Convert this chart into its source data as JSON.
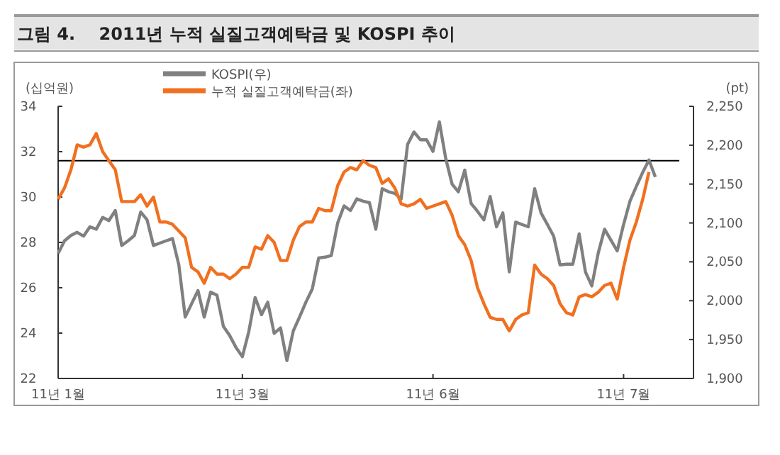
{
  "chart_data": {
    "type": "line",
    "title": "그림 4.    2011년 누적 실질고객예탁금 및 KOSPI 추이",
    "ylabel": "(십억원)",
    "y2label": "(pt)",
    "categories": [
      "11년 1월",
      null,
      null,
      null,
      null,
      null,
      null,
      null,
      null,
      null,
      null,
      null,
      null,
      null,
      null,
      null,
      null,
      null,
      null,
      null,
      null,
      null,
      null,
      null,
      null,
      null,
      null,
      null,
      null,
      "11년 3월",
      null,
      null,
      null,
      null,
      null,
      null,
      null,
      null,
      null,
      null,
      null,
      null,
      null,
      null,
      null,
      null,
      null,
      null,
      null,
      null,
      null,
      null,
      null,
      null,
      null,
      null,
      null,
      null,
      null,
      "11년 6월",
      null,
      null,
      null,
      null,
      null,
      null,
      null,
      null,
      null,
      null,
      null,
      null,
      null,
      null,
      null,
      null,
      null,
      null,
      null,
      null,
      null,
      null,
      null,
      null,
      null,
      null,
      null,
      null,
      null,
      "11년 7월",
      null,
      null,
      null,
      null,
      null,
      null,
      null,
      null,
      null,
      null
    ],
    "ylim": [
      22,
      34
    ],
    "yticks": [
      22,
      24,
      26,
      28,
      30,
      32,
      34
    ],
    "y2lim": [
      1900,
      2250
    ],
    "y2ticks": [
      {
        "value": 1900,
        "label": "1,900"
      },
      {
        "value": 1950,
        "label": "1,950"
      },
      {
        "value": 2000,
        "label": "2,000"
      },
      {
        "value": 2050,
        "label": "2,050"
      },
      {
        "value": 2100,
        "label": "2,100"
      },
      {
        "value": 2150,
        "label": "2,150"
      },
      {
        "value": 2200,
        "label": "2,200"
      },
      {
        "value": 2250,
        "label": "2,250"
      }
    ],
    "legend": "top",
    "grid": false,
    "ref_lines": [
      {
        "axis": "y",
        "value": 31.6,
        "color": "#000000"
      }
    ],
    "series": [
      {
        "name": "KOSPI(우)",
        "color": "#808080",
        "axis": "y2",
        "values": [
          2061,
          2077,
          2084,
          2088,
          2083,
          2095,
          2092,
          2107,
          2103,
          2116,
          2071,
          2077,
          2084,
          2114,
          2104,
          2071,
          2074,
          2077,
          2080,
          2046,
          1979,
          1996,
          2013,
          1979,
          2011,
          2007,
          1967,
          1955,
          1940,
          1928,
          1960,
          2004,
          1982,
          1998,
          1958,
          1965,
          1923,
          1961,
          1979,
          1998,
          2015,
          2055,
          2056,
          2058,
          2100,
          2122,
          2116,
          2131,
          2128,
          2126,
          2092,
          2144,
          2140,
          2138,
          2131,
          2201,
          2217,
          2207,
          2207,
          2192,
          2230,
          2183,
          2150,
          2140,
          2168,
          2125,
          2115,
          2104,
          2134,
          2095,
          2113,
          2037,
          2101,
          2098,
          2095,
          2144,
          2113,
          2098,
          2083,
          2046,
          2047,
          2047,
          2086,
          2037,
          2019,
          2061,
          2092,
          2078,
          2064,
          2098,
          2128,
          2147,
          2165,
          2181,
          2159,
          null,
          null,
          null,
          null,
          null
        ]
      },
      {
        "name": "누적 실질고객예탁금(좌)",
        "color": "#f07020",
        "axis": "y",
        "values": [
          29.9,
          30.4,
          31.2,
          32.3,
          32.2,
          32.3,
          32.8,
          32.0,
          31.6,
          31.2,
          29.8,
          29.8,
          29.8,
          30.1,
          29.6,
          30.0,
          28.9,
          28.9,
          28.8,
          28.5,
          28.2,
          26.9,
          26.7,
          26.2,
          26.9,
          26.6,
          26.6,
          26.4,
          26.6,
          26.9,
          26.9,
          27.8,
          27.7,
          28.3,
          28.0,
          27.2,
          27.2,
          28.1,
          28.7,
          28.9,
          28.9,
          29.5,
          29.4,
          29.4,
          30.5,
          31.1,
          31.3,
          31.2,
          31.6,
          31.4,
          31.3,
          30.6,
          30.8,
          30.4,
          29.7,
          29.6,
          29.7,
          29.9,
          29.5,
          29.6,
          29.7,
          29.8,
          29.2,
          28.3,
          27.9,
          27.2,
          26.0,
          25.3,
          24.7,
          24.6,
          24.6,
          24.1,
          24.6,
          24.8,
          24.9,
          27.0,
          26.6,
          26.4,
          26.1,
          25.3,
          24.9,
          24.8,
          25.6,
          25.7,
          25.6,
          25.8,
          26.1,
          26.2,
          25.5,
          26.9,
          28.1,
          28.9,
          29.9,
          31.1,
          null,
          null,
          null,
          null,
          null,
          null
        ]
      }
    ]
  }
}
